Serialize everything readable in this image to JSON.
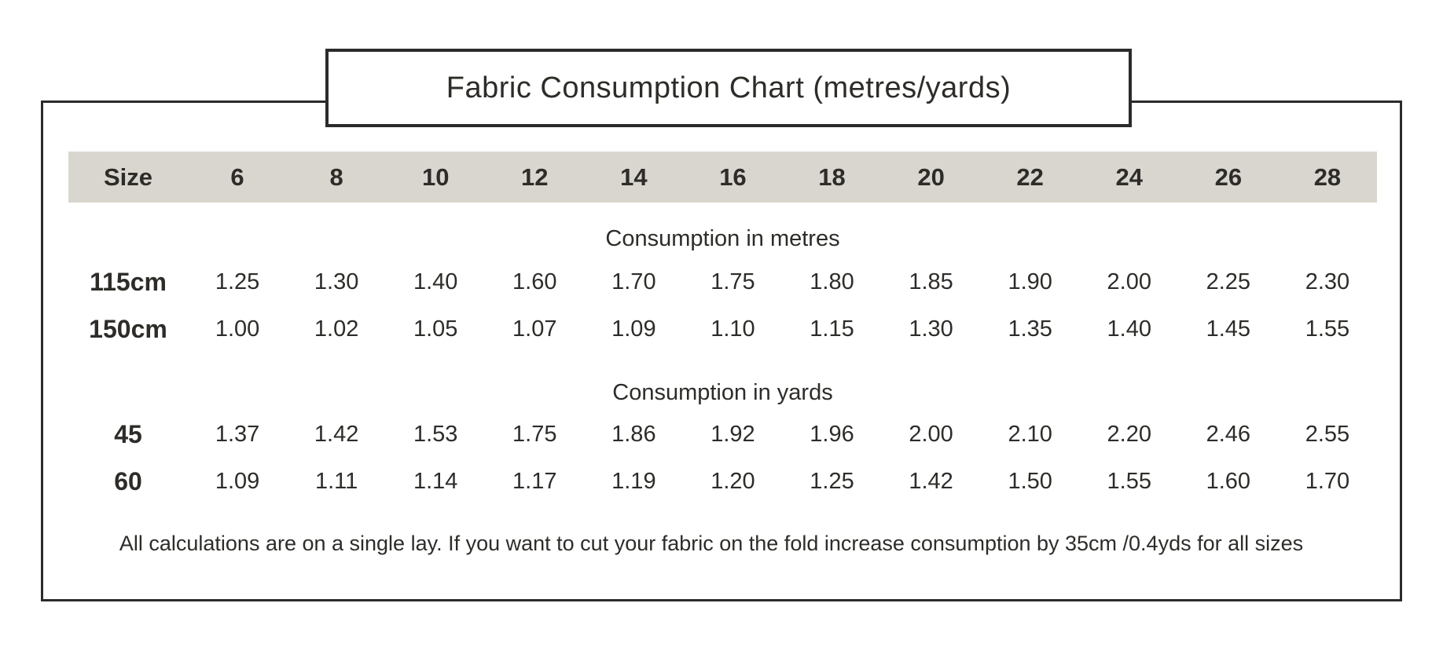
{
  "colors": {
    "background": "#ffffff",
    "border": "#2b2b2b",
    "header_band": "#d8d6ce",
    "text": "#2e2c29"
  },
  "chart_data": {
    "type": "table",
    "title": "Fabric Consumption Chart (metres/yards)",
    "columns": [
      "Size",
      "6",
      "8",
      "10",
      "12",
      "14",
      "16",
      "18",
      "20",
      "22",
      "24",
      "26",
      "28"
    ],
    "sections": [
      {
        "label": "Consumption in metres",
        "rows": [
          {
            "label": "115cm",
            "values": [
              "1.25",
              "1.30",
              "1.40",
              "1.60",
              "1.70",
              "1.75",
              "1.80",
              "1.85",
              "1.90",
              "2.00",
              "2.25",
              "2.30"
            ]
          },
          {
            "label": "150cm",
            "values": [
              "1.00",
              "1.02",
              "1.05",
              "1.07",
              "1.09",
              "1.10",
              "1.15",
              "1.30",
              "1.35",
              "1.40",
              "1.45",
              "1.55"
            ]
          }
        ]
      },
      {
        "label": "Consumption in yards",
        "rows": [
          {
            "label": "45",
            "values": [
              "1.37",
              "1.42",
              "1.53",
              "1.75",
              "1.86",
              "1.92",
              "1.96",
              "2.00",
              "2.10",
              "2.20",
              "2.46",
              "2.55"
            ]
          },
          {
            "label": "60",
            "values": [
              "1.09",
              "1.11",
              "1.14",
              "1.17",
              "1.19",
              "1.20",
              "1.25",
              "1.42",
              "1.50",
              "1.55",
              "1.60",
              "1.70"
            ]
          }
        ]
      }
    ],
    "footnote": "All calculations are on a single lay. If you want to cut your fabric on the fold increase consumption by 35cm /0.4yds for all sizes"
  }
}
